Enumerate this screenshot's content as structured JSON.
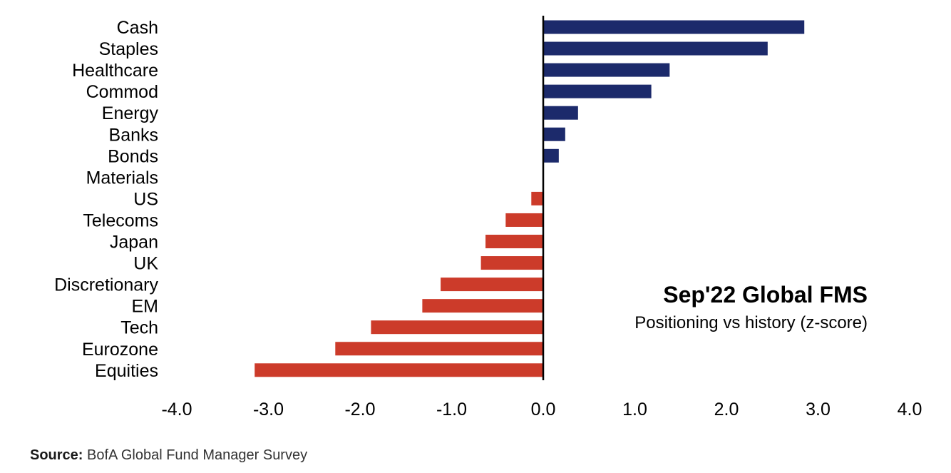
{
  "chart_data": {
    "type": "bar",
    "orientation": "horizontal",
    "title": "Sep'22 Global FMS",
    "subtitle": "Positioning vs history (z-score)",
    "categories": [
      "Cash",
      "Staples",
      "Healthcare",
      "Commod",
      "Energy",
      "Banks",
      "Bonds",
      "Materials",
      "US",
      "Telecoms",
      "Japan",
      "UK",
      "Discretionary",
      "EM",
      "Tech",
      "Eurozone",
      "Equities"
    ],
    "values": [
      2.85,
      2.45,
      1.38,
      1.18,
      0.38,
      0.24,
      0.17,
      0.0,
      -0.13,
      -0.41,
      -0.63,
      -0.68,
      -1.12,
      -1.32,
      -1.88,
      -2.27,
      -3.15
    ],
    "xlim": [
      -4.0,
      4.0
    ],
    "xticks": [
      -4.0,
      -3.0,
      -2.0,
      -1.0,
      0.0,
      1.0,
      2.0,
      3.0,
      4.0
    ],
    "xtick_labels": [
      "-4.0",
      "-3.0",
      "-2.0",
      "-1.0",
      "0.0",
      "1.0",
      "2.0",
      "3.0",
      "4.0"
    ],
    "colors": {
      "positive": "#1c2a6b",
      "negative": "#cc3b2a",
      "axis": "#000000"
    },
    "grid": false,
    "legend": "none"
  },
  "source": {
    "label": "Source:",
    "text": "BofA Global Fund Manager Survey"
  }
}
